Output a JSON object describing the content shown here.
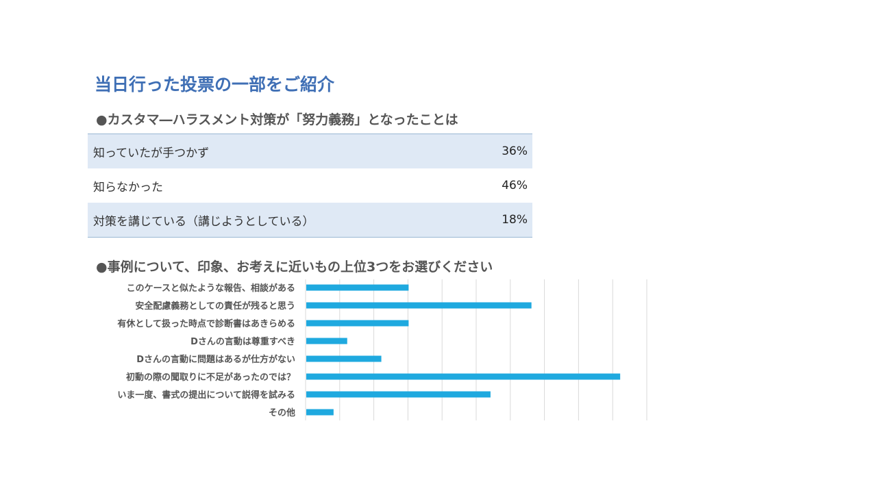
{
  "title": "当日行った投票の一部をご紹介",
  "section1": {
    "heading": "●カスタマ―ハラスメント対策が「努力義務」となったことは",
    "rows": [
      {
        "label": "知っていたが手つかず",
        "value": "36%"
      },
      {
        "label": "知らなかった",
        "value": "46%"
      },
      {
        "label": "対策を講じている（講じようとしている）",
        "value": "18%"
      }
    ]
  },
  "section2": {
    "heading": "●事例について、印象、お考えに近いもの上位3つをお選びください"
  },
  "colors": {
    "bar": "#1fa9df",
    "grid": "#d9d9d9",
    "title": "#3f6fb5",
    "row_shade": "#dfe9f5"
  },
  "chart_data": {
    "type": "bar",
    "orientation": "horizontal",
    "categories": [
      "このケースと似たような報告、相談がある",
      "安全配慮義務としての責任が残ると思う",
      "有休として扱った時点で診断書はあきらめる",
      "Dさんの言動は尊重すべき",
      "Dさんの言動に問題はあるが仕方がない",
      "初動の際の聞取りに不足があったのでは？",
      "いま一度、書式の提出について説得を試みる",
      "その他"
    ],
    "values": [
      6,
      13.2,
      6,
      2.4,
      4.4,
      18.4,
      10.8,
      1.6
    ],
    "xlim": [
      0,
      20
    ],
    "grid": true,
    "legend": "none"
  }
}
